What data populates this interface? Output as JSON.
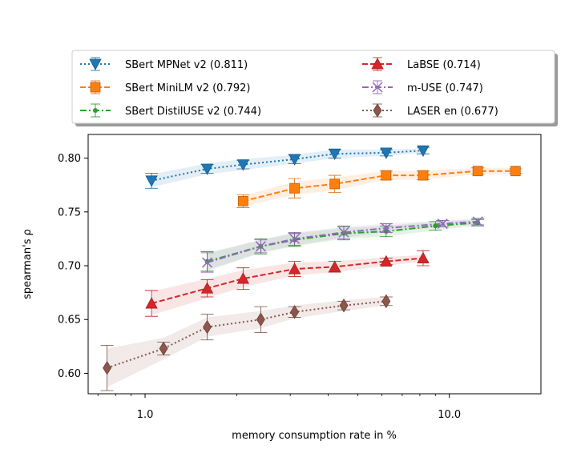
{
  "chart_data": {
    "type": "line",
    "xlabel": "memory consumption rate in %",
    "ylabel": "spearman's ρ",
    "xscale": "log",
    "xlim": [
      0.65,
      20
    ],
    "ylim": [
      0.581,
      0.822
    ],
    "xticks": [
      {
        "value": 1.0,
        "label": "1.0"
      },
      {
        "value": 10.0,
        "label": "10.0"
      }
    ],
    "yticks": [
      {
        "value": 0.6,
        "label": "0.60"
      },
      {
        "value": 0.65,
        "label": "0.65"
      },
      {
        "value": 0.7,
        "label": "0.70"
      },
      {
        "value": 0.75,
        "label": "0.75"
      },
      {
        "value": 0.8,
        "label": "0.80"
      }
    ],
    "legend_position": "top",
    "series": [
      {
        "name": "SBert MPNet v2 (0.811)",
        "color": "#1f77b4",
        "linestyle": "dotted",
        "marker": "triangle-down",
        "x": [
          1.05,
          1.6,
          2.1,
          3.1,
          4.2,
          6.2,
          8.2
        ],
        "y": [
          0.779,
          0.79,
          0.794,
          0.799,
          0.804,
          0.805,
          0.807
        ],
        "err": [
          0.007,
          0.004,
          0.004,
          0.004,
          0.004,
          0.003,
          0.003
        ],
        "band": [
          0.006,
          0.005,
          0.005,
          0.004,
          0.004,
          0.003,
          0.002
        ]
      },
      {
        "name": "SBert MiniLM v2 (0.792)",
        "color": "#ff7f0e",
        "linestyle": "dashed",
        "marker": "square",
        "x": [
          2.1,
          3.1,
          4.2,
          6.2,
          8.2,
          12.4,
          16.5
        ],
        "y": [
          0.76,
          0.772,
          0.776,
          0.784,
          0.784,
          0.788,
          0.788
        ],
        "err": [
          0.006,
          0.009,
          0.008,
          0.004,
          0.004,
          0.003,
          0.002
        ],
        "band": [
          0.005,
          0.006,
          0.006,
          0.004,
          0.004,
          0.003,
          0.003
        ]
      },
      {
        "name": "SBert DistilUSE v2 (0.744)",
        "color": "#2ca02c",
        "linestyle": "dashdot",
        "marker": "point",
        "x": [
          1.6,
          2.4,
          3.1,
          4.5,
          6.2,
          9.0,
          12.4
        ],
        "y": [
          0.704,
          0.718,
          0.724,
          0.73,
          0.732,
          0.737,
          0.74
        ],
        "err": [
          0.009,
          0.007,
          0.006,
          0.006,
          0.005,
          0.004,
          0.003
        ],
        "band": [
          0.008,
          0.006,
          0.006,
          0.005,
          0.005,
          0.004,
          0.003
        ]
      },
      {
        "name": "LaBSE (0.714)",
        "color": "#d62728",
        "linestyle": "dashed",
        "marker": "triangle-up",
        "x": [
          1.05,
          1.6,
          2.1,
          3.1,
          4.2,
          6.2,
          8.2
        ],
        "y": [
          0.665,
          0.679,
          0.688,
          0.697,
          0.699,
          0.704,
          0.707
        ],
        "err": [
          0.012,
          0.008,
          0.01,
          0.007,
          0.005,
          0.003,
          0.007
        ],
        "band": [
          0.011,
          0.009,
          0.008,
          0.006,
          0.005,
          0.004,
          0.003
        ]
      },
      {
        "name": "m-USE (0.747)",
        "color": "#9467bd",
        "linestyle": "dashdot",
        "marker": "x",
        "x": [
          1.6,
          2.4,
          3.1,
          4.5,
          6.2,
          9.5,
          12.4
        ],
        "y": [
          0.703,
          0.718,
          0.725,
          0.731,
          0.735,
          0.739,
          0.741
        ],
        "err": [
          0.009,
          0.006,
          0.006,
          0.006,
          0.004,
          0.003,
          0.003
        ],
        "band": [
          0.008,
          0.006,
          0.006,
          0.005,
          0.004,
          0.003,
          0.003
        ]
      },
      {
        "name": "LASER en (0.677)",
        "color": "#8c564b",
        "linestyle": "dotted",
        "marker": "thin-diamond",
        "x": [
          0.75,
          1.15,
          1.6,
          2.4,
          3.1,
          4.5,
          6.2
        ],
        "y": [
          0.605,
          0.623,
          0.643,
          0.65,
          0.657,
          0.663,
          0.667
        ],
        "err": [
          0.021,
          0.006,
          0.012,
          0.012,
          0.005,
          0.004,
          0.004
        ],
        "band": [
          0.018,
          0.01,
          0.009,
          0.008,
          0.006,
          0.005,
          0.004
        ]
      }
    ]
  }
}
